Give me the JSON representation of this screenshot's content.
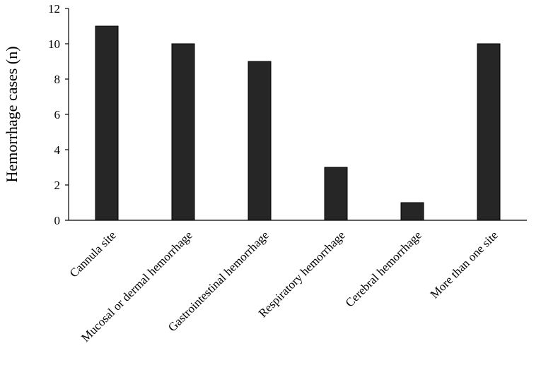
{
  "chart_data": {
    "type": "bar",
    "title": "",
    "xlabel": "",
    "ylabel": "Hemorrhage cases (n)",
    "categories": [
      "Cannula site",
      "Mucosal or dermal hemorrhage",
      "Gastrointestinal hemorrhage",
      "Respiratory hemorrhage",
      "Cerebral hemorrhage",
      "More than one site"
    ],
    "values": [
      11,
      10,
      9,
      3,
      1,
      10
    ],
    "ylim": [
      0,
      12
    ],
    "yticks": [
      0,
      2,
      4,
      6,
      8,
      10,
      12
    ],
    "grid": false,
    "legend": "none",
    "colors": {
      "bar": "#262626",
      "axis": "#000000",
      "background": "#ffffff"
    }
  }
}
